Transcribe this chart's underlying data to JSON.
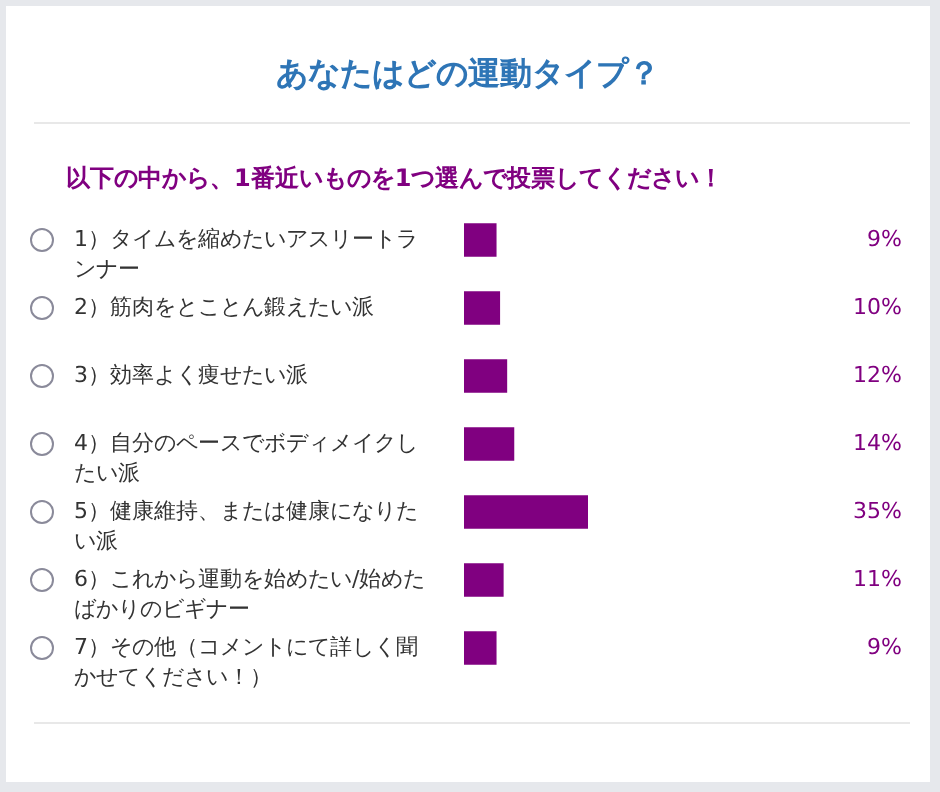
{
  "chart_data": {
    "type": "bar",
    "orientation": "horizontal",
    "title": "あなたはどの運動タイプ？",
    "subtitle": "以下の中から、1番近いものを1つ選んで投票してください！",
    "categories": [
      "1）タイムを縮めたいアスリートランナー",
      "2）筋肉をとことん鍛えたい派",
      "3）効率よく痩せたい派",
      "4）自分のペースでボディメイクしたい派",
      "5）健康維持、または健康になりたい派",
      "6）これから運動を始めたい/始めたばかりのビギナー",
      "7）その他（コメントにて詳しく聞かせてください！）"
    ],
    "values": [
      9,
      10,
      12,
      14,
      35,
      11,
      9
    ],
    "value_labels": [
      "9%",
      "10%",
      "12%",
      "14%",
      "35%",
      "11%",
      "9%"
    ],
    "color": "#800080",
    "tick_labels": "y"
  }
}
